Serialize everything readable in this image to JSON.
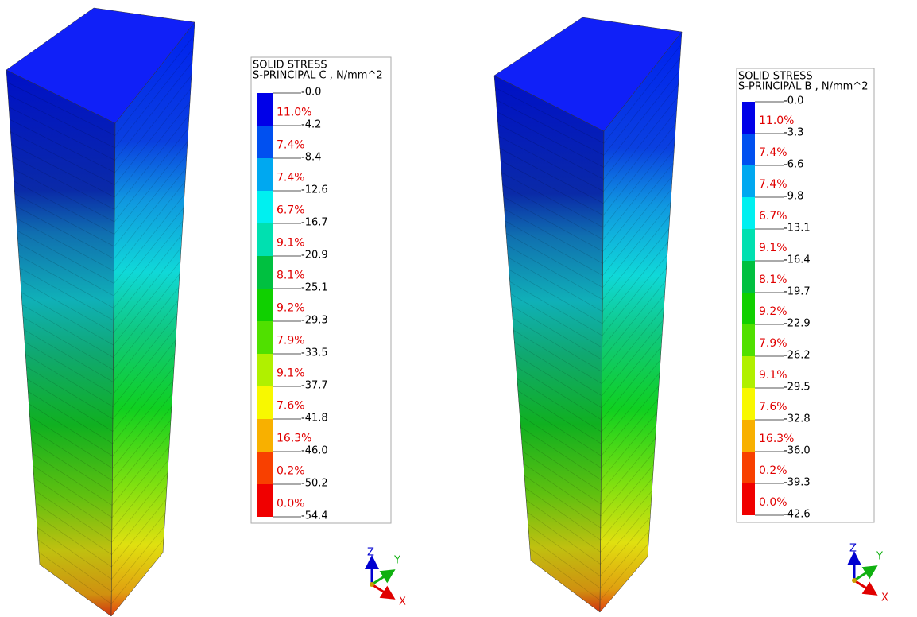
{
  "panels": [
    {
      "title": "SOLID STRESS",
      "subtitle": "S-PRINCIPAL C , N/mm^2",
      "ticks": [
        "-0.0",
        "-4.2",
        "-8.4",
        "-12.6",
        "-16.7",
        "-20.9",
        "-25.1",
        "-29.3",
        "-33.5",
        "-37.7",
        "-41.8",
        "-46.0",
        "-50.2",
        "-54.4"
      ],
      "percents": [
        "11.0%",
        "7.4%",
        "7.4%",
        "6.7%",
        "9.1%",
        "8.1%",
        "9.2%",
        "7.9%",
        "9.1%",
        "7.6%",
        "16.3%",
        "0.2%",
        "0.0%"
      ],
      "axes": [
        "Z",
        "Y",
        "X"
      ]
    },
    {
      "title": "SOLID STRESS",
      "subtitle": "S-PRINCIPAL B , N/mm^2",
      "ticks": [
        "-0.0",
        "-3.3",
        "-6.6",
        "-9.8",
        "-13.1",
        "-16.4",
        "-19.7",
        "-22.9",
        "-26.2",
        "-29.5",
        "-32.8",
        "-36.0",
        "-39.3",
        "-42.6"
      ],
      "percents": [
        "11.0%",
        "7.4%",
        "7.4%",
        "6.7%",
        "9.1%",
        "8.1%",
        "9.2%",
        "7.9%",
        "9.1%",
        "7.6%",
        "16.3%",
        "0.2%",
        "0.0%"
      ],
      "axes": [
        "Z",
        "Y",
        "X"
      ]
    }
  ]
}
